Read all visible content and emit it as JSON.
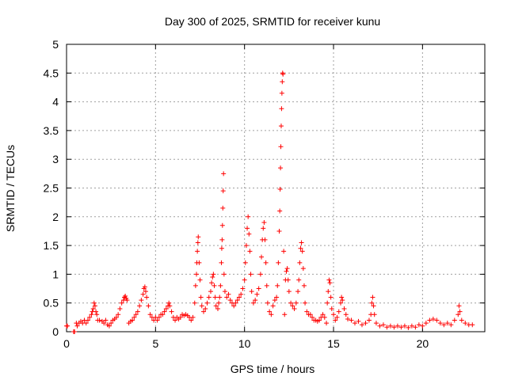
{
  "chart_data": {
    "type": "scatter",
    "title": "Day 300 of 2025, SRMTID for receiver kunu",
    "xlabel": "GPS time / hours",
    "ylabel": "SRMTID / TECUs",
    "xlim": [
      0,
      23.5
    ],
    "ylim": [
      0,
      5
    ],
    "xticks": [
      0,
      5,
      10,
      15,
      20
    ],
    "xtick_labels": [
      "0",
      "5",
      "10",
      "15",
      "20"
    ],
    "yticks": [
      0,
      0.5,
      1,
      1.5,
      2,
      2.5,
      3,
      3.5,
      4,
      4.5,
      5
    ],
    "ytick_labels": [
      "0",
      "0.5",
      "1",
      "1.5",
      "2",
      "2.5",
      "3",
      "3.5",
      "4",
      "4.5",
      "5"
    ],
    "grid": true,
    "marker": "+",
    "series": [
      {
        "name": "SRMTID",
        "color": "#ff0000",
        "points": [
          [
            0.0,
            0.1
          ],
          [
            0.05,
            0.1
          ],
          [
            0.4,
            0.0
          ],
          [
            0.45,
            0.0
          ],
          [
            0.55,
            0.15
          ],
          [
            0.6,
            0.1
          ],
          [
            0.7,
            0.15
          ],
          [
            0.8,
            0.18
          ],
          [
            0.9,
            0.15
          ],
          [
            1.0,
            0.2
          ],
          [
            1.1,
            0.15
          ],
          [
            1.2,
            0.2
          ],
          [
            1.3,
            0.25
          ],
          [
            1.4,
            0.3
          ],
          [
            1.45,
            0.35
          ],
          [
            1.5,
            0.4
          ],
          [
            1.55,
            0.5
          ],
          [
            1.6,
            0.45
          ],
          [
            1.65,
            0.35
          ],
          [
            1.7,
            0.3
          ],
          [
            1.75,
            0.2
          ],
          [
            1.85,
            0.2
          ],
          [
            2.0,
            0.18
          ],
          [
            2.1,
            0.15
          ],
          [
            2.2,
            0.2
          ],
          [
            2.3,
            0.12
          ],
          [
            2.4,
            0.1
          ],
          [
            2.5,
            0.15
          ],
          [
            2.6,
            0.2
          ],
          [
            2.7,
            0.22
          ],
          [
            2.8,
            0.25
          ],
          [
            2.9,
            0.3
          ],
          [
            3.0,
            0.4
          ],
          [
            3.1,
            0.5
          ],
          [
            3.2,
            0.55
          ],
          [
            3.25,
            0.6
          ],
          [
            3.3,
            0.62
          ],
          [
            3.35,
            0.58
          ],
          [
            3.4,
            0.55
          ],
          [
            3.5,
            0.15
          ],
          [
            3.6,
            0.18
          ],
          [
            3.7,
            0.2
          ],
          [
            3.8,
            0.25
          ],
          [
            3.9,
            0.3
          ],
          [
            4.0,
            0.35
          ],
          [
            4.1,
            0.45
          ],
          [
            4.2,
            0.55
          ],
          [
            4.3,
            0.65
          ],
          [
            4.35,
            0.75
          ],
          [
            4.4,
            0.78
          ],
          [
            4.45,
            0.7
          ],
          [
            4.5,
            0.6
          ],
          [
            4.6,
            0.45
          ],
          [
            4.7,
            0.3
          ],
          [
            4.8,
            0.25
          ],
          [
            4.9,
            0.2
          ],
          [
            5.0,
            0.25
          ],
          [
            5.1,
            0.2
          ],
          [
            5.2,
            0.25
          ],
          [
            5.3,
            0.3
          ],
          [
            5.4,
            0.3
          ],
          [
            5.5,
            0.35
          ],
          [
            5.6,
            0.4
          ],
          [
            5.7,
            0.45
          ],
          [
            5.75,
            0.5
          ],
          [
            5.8,
            0.45
          ],
          [
            5.9,
            0.35
          ],
          [
            6.0,
            0.25
          ],
          [
            6.1,
            0.2
          ],
          [
            6.2,
            0.25
          ],
          [
            6.3,
            0.22
          ],
          [
            6.4,
            0.25
          ],
          [
            6.5,
            0.3
          ],
          [
            6.6,
            0.28
          ],
          [
            6.7,
            0.3
          ],
          [
            6.8,
            0.28
          ],
          [
            6.9,
            0.25
          ],
          [
            7.0,
            0.2
          ],
          [
            7.1,
            0.25
          ],
          [
            7.2,
            0.5
          ],
          [
            7.25,
            0.8
          ],
          [
            7.3,
            1.0
          ],
          [
            7.32,
            1.2
          ],
          [
            7.35,
            1.4
          ],
          [
            7.38,
            1.55
          ],
          [
            7.4,
            1.65
          ],
          [
            7.45,
            1.2
          ],
          [
            7.5,
            0.9
          ],
          [
            7.55,
            0.6
          ],
          [
            7.6,
            0.45
          ],
          [
            7.7,
            0.35
          ],
          [
            7.8,
            0.4
          ],
          [
            7.9,
            0.5
          ],
          [
            8.0,
            0.6
          ],
          [
            8.1,
            0.7
          ],
          [
            8.15,
            0.85
          ],
          [
            8.2,
            0.95
          ],
          [
            8.25,
            1.0
          ],
          [
            8.3,
            0.8
          ],
          [
            8.35,
            0.6
          ],
          [
            8.4,
            0.45
          ],
          [
            8.5,
            0.4
          ],
          [
            8.55,
            0.5
          ],
          [
            8.6,
            0.6
          ],
          [
            8.65,
            0.8
          ],
          [
            8.7,
            1.2
          ],
          [
            8.72,
            1.45
          ],
          [
            8.74,
            1.6
          ],
          [
            8.76,
            1.85
          ],
          [
            8.78,
            2.15
          ],
          [
            8.8,
            2.45
          ],
          [
            8.82,
            2.75
          ],
          [
            8.85,
            1.0
          ],
          [
            8.9,
            0.7
          ],
          [
            9.0,
            0.6
          ],
          [
            9.1,
            0.65
          ],
          [
            9.2,
            0.55
          ],
          [
            9.3,
            0.5
          ],
          [
            9.4,
            0.45
          ],
          [
            9.5,
            0.5
          ],
          [
            9.6,
            0.55
          ],
          [
            9.7,
            0.6
          ],
          [
            9.8,
            0.65
          ],
          [
            9.9,
            0.75
          ],
          [
            10.0,
            0.9
          ],
          [
            10.05,
            1.2
          ],
          [
            10.1,
            1.5
          ],
          [
            10.15,
            1.8
          ],
          [
            10.2,
            2.0
          ],
          [
            10.25,
            1.7
          ],
          [
            10.3,
            1.4
          ],
          [
            10.35,
            1.0
          ],
          [
            10.4,
            0.7
          ],
          [
            10.5,
            0.5
          ],
          [
            10.6,
            0.55
          ],
          [
            10.7,
            0.65
          ],
          [
            10.8,
            0.75
          ],
          [
            10.9,
            1.0
          ],
          [
            10.95,
            1.3
          ],
          [
            11.0,
            1.6
          ],
          [
            11.05,
            1.8
          ],
          [
            11.1,
            1.9
          ],
          [
            11.15,
            1.6
          ],
          [
            11.2,
            1.2
          ],
          [
            11.25,
            0.8
          ],
          [
            11.3,
            0.5
          ],
          [
            11.4,
            0.35
          ],
          [
            11.5,
            0.3
          ],
          [
            11.6,
            0.45
          ],
          [
            11.7,
            0.55
          ],
          [
            11.8,
            0.6
          ],
          [
            11.85,
            0.8
          ],
          [
            11.9,
            1.2
          ],
          [
            11.95,
            1.75
          ],
          [
            11.98,
            2.1
          ],
          [
            12.0,
            2.48
          ],
          [
            12.02,
            2.85
          ],
          [
            12.04,
            3.22
          ],
          [
            12.06,
            3.58
          ],
          [
            12.08,
            3.88
          ],
          [
            12.1,
            4.15
          ],
          [
            12.12,
            4.35
          ],
          [
            12.14,
            4.5
          ],
          [
            12.16,
            4.48
          ],
          [
            12.2,
            1.4
          ],
          [
            12.25,
            0.3
          ],
          [
            12.3,
            0.9
          ],
          [
            12.35,
            1.05
          ],
          [
            12.4,
            1.1
          ],
          [
            12.45,
            0.9
          ],
          [
            12.5,
            0.7
          ],
          [
            12.6,
            0.5
          ],
          [
            12.7,
            0.45
          ],
          [
            12.8,
            0.4
          ],
          [
            12.9,
            0.5
          ],
          [
            13.0,
            0.7
          ],
          [
            13.05,
            0.9
          ],
          [
            13.1,
            1.2
          ],
          [
            13.15,
            1.45
          ],
          [
            13.2,
            1.55
          ],
          [
            13.25,
            1.4
          ],
          [
            13.3,
            1.1
          ],
          [
            13.35,
            0.8
          ],
          [
            13.4,
            0.5
          ],
          [
            13.5,
            0.35
          ],
          [
            13.6,
            0.3
          ],
          [
            13.7,
            0.3
          ],
          [
            13.8,
            0.25
          ],
          [
            13.9,
            0.2
          ],
          [
            14.0,
            0.2
          ],
          [
            14.1,
            0.18
          ],
          [
            14.2,
            0.2
          ],
          [
            14.3,
            0.25
          ],
          [
            14.4,
            0.3
          ],
          [
            14.5,
            0.25
          ],
          [
            14.6,
            0.15
          ],
          [
            14.65,
            0.5
          ],
          [
            14.7,
            0.7
          ],
          [
            14.75,
            0.9
          ],
          [
            14.8,
            0.85
          ],
          [
            14.85,
            0.6
          ],
          [
            14.9,
            0.4
          ],
          [
            15.0,
            0.3
          ],
          [
            15.1,
            0.2
          ],
          [
            15.2,
            0.25
          ],
          [
            15.3,
            0.35
          ],
          [
            15.4,
            0.5
          ],
          [
            15.45,
            0.6
          ],
          [
            15.5,
            0.55
          ],
          [
            15.6,
            0.4
          ],
          [
            15.7,
            0.3
          ],
          [
            15.8,
            0.22
          ],
          [
            16.0,
            0.2
          ],
          [
            16.2,
            0.15
          ],
          [
            16.4,
            0.18
          ],
          [
            16.6,
            0.12
          ],
          [
            16.8,
            0.15
          ],
          [
            17.0,
            0.2
          ],
          [
            17.1,
            0.3
          ],
          [
            17.15,
            0.5
          ],
          [
            17.2,
            0.6
          ],
          [
            17.25,
            0.45
          ],
          [
            17.3,
            0.3
          ],
          [
            17.4,
            0.15
          ],
          [
            17.6,
            0.1
          ],
          [
            17.8,
            0.12
          ],
          [
            18.0,
            0.08
          ],
          [
            18.2,
            0.1
          ],
          [
            18.4,
            0.08
          ],
          [
            18.6,
            0.1
          ],
          [
            18.8,
            0.08
          ],
          [
            19.0,
            0.1
          ],
          [
            19.2,
            0.07
          ],
          [
            19.4,
            0.1
          ],
          [
            19.6,
            0.08
          ],
          [
            19.8,
            0.12
          ],
          [
            20.0,
            0.1
          ],
          [
            20.2,
            0.15
          ],
          [
            20.4,
            0.2
          ],
          [
            20.6,
            0.22
          ],
          [
            20.8,
            0.2
          ],
          [
            21.0,
            0.15
          ],
          [
            21.2,
            0.12
          ],
          [
            21.4,
            0.15
          ],
          [
            21.6,
            0.12
          ],
          [
            21.8,
            0.2
          ],
          [
            22.0,
            0.3
          ],
          [
            22.05,
            0.45
          ],
          [
            22.1,
            0.35
          ],
          [
            22.2,
            0.2
          ],
          [
            22.4,
            0.15
          ],
          [
            22.6,
            0.12
          ],
          [
            22.8,
            0.12
          ]
        ]
      }
    ]
  }
}
